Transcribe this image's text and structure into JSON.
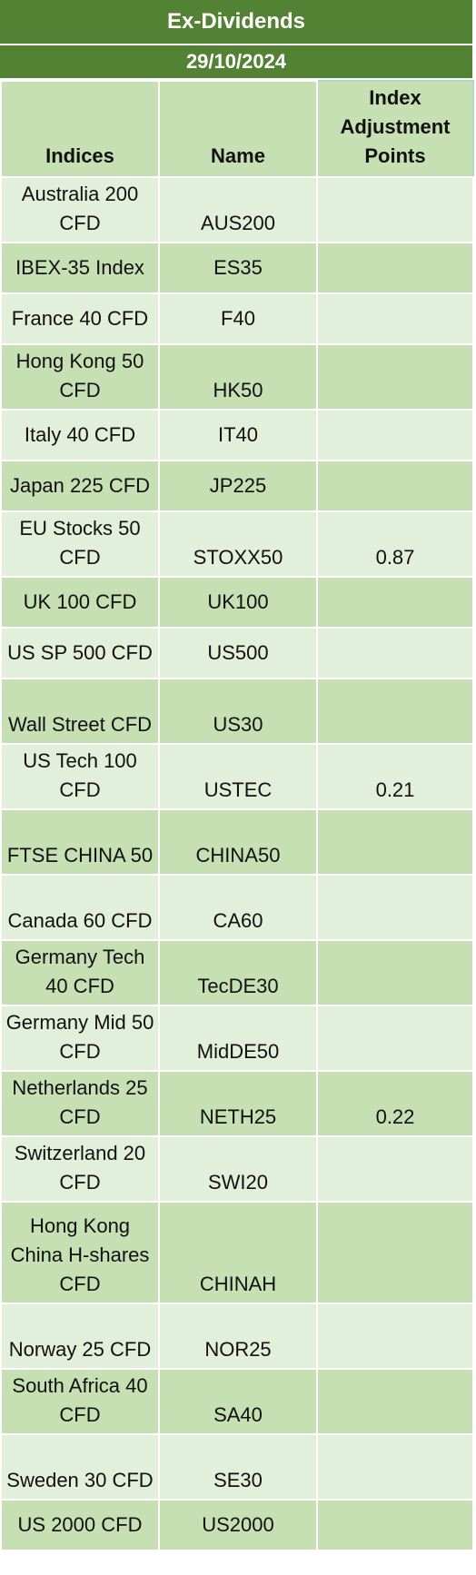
{
  "title": "Ex-Dividends",
  "date": "29/10/2024",
  "columns": {
    "indices": "Indices",
    "name": "Name",
    "adjustment": "Index Adjustment Points"
  },
  "rows": [
    {
      "index": "Australia 200 CFD",
      "name": "AUS200",
      "points": ""
    },
    {
      "index": "IBEX-35 Index",
      "name": "ES35",
      "points": ""
    },
    {
      "index": "France 40 CFD",
      "name": "F40",
      "points": ""
    },
    {
      "index": "Hong Kong 50 CFD",
      "name": "HK50",
      "points": ""
    },
    {
      "index": "Italy 40 CFD",
      "name": "IT40",
      "points": ""
    },
    {
      "index": "Japan 225 CFD",
      "name": "JP225",
      "points": ""
    },
    {
      "index": "EU Stocks 50 CFD",
      "name": "STOXX50",
      "points": "0.87"
    },
    {
      "index": "UK 100 CFD",
      "name": "UK100",
      "points": ""
    },
    {
      "index": "US SP 500 CFD",
      "name": "US500",
      "points": ""
    },
    {
      "index": "Wall Street CFD",
      "name": "US30",
      "points": ""
    },
    {
      "index": "US Tech 100 CFD",
      "name": "USTEC",
      "points": "0.21"
    },
    {
      "index": "FTSE CHINA 50",
      "name": "CHINA50",
      "points": ""
    },
    {
      "index": "Canada 60 CFD",
      "name": "CA60",
      "points": ""
    },
    {
      "index": "Germany Tech 40 CFD",
      "name": "TecDE30",
      "points": ""
    },
    {
      "index": "Germany Mid 50 CFD",
      "name": "MidDE50",
      "points": ""
    },
    {
      "index": "Netherlands 25 CFD",
      "name": "NETH25",
      "points": "0.22"
    },
    {
      "index": "Switzerland 20 CFD",
      "name": "SWI20",
      "points": ""
    },
    {
      "index": "Hong Kong China H-shares CFD",
      "name": "CHINAH",
      "points": ""
    },
    {
      "index": "Norway 25 CFD",
      "name": "NOR25",
      "points": ""
    },
    {
      "index": "South Africa 40 CFD",
      "name": "SA40",
      "points": ""
    },
    {
      "index": "Sweden 30 CFD",
      "name": "SE30",
      "points": ""
    },
    {
      "index": "US 2000 CFD",
      "name": "US2000",
      "points": ""
    }
  ]
}
